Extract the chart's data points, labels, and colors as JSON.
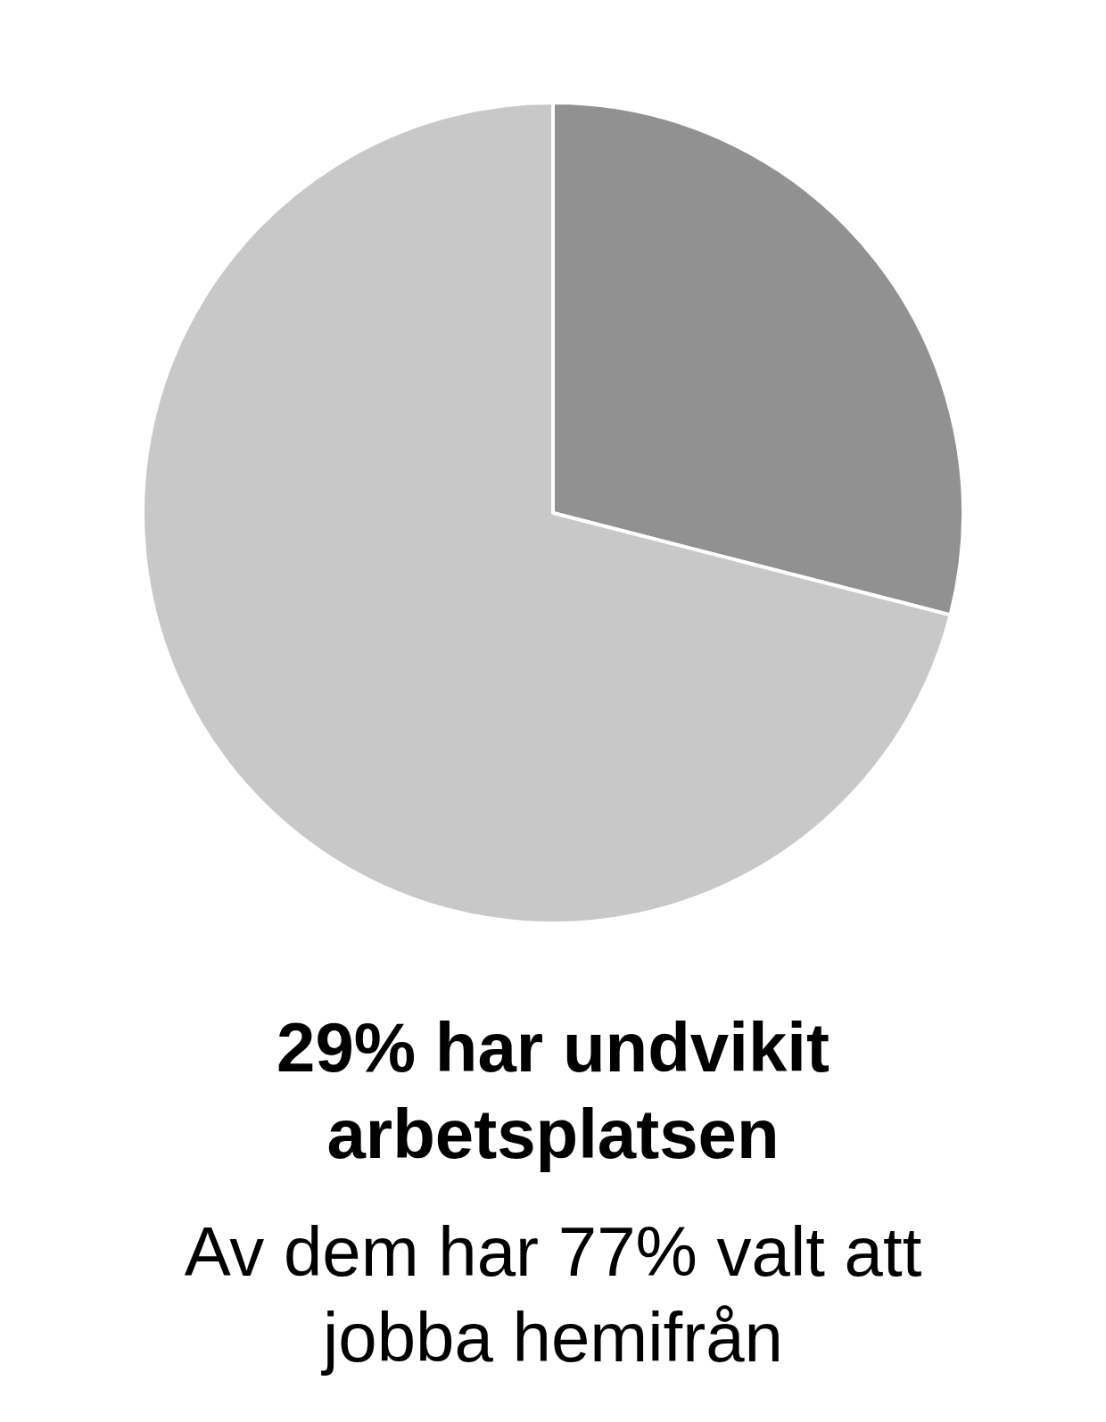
{
  "chart_data": {
    "type": "pie",
    "title": "29% har undvikit arbetsplatsen",
    "subtitle": "Av dem har 77% valt att jobba hemifrån",
    "categories": [
      null,
      null
    ],
    "values": [
      29,
      71
    ],
    "colors": [
      "#919191",
      "#c8c8c8"
    ]
  }
}
